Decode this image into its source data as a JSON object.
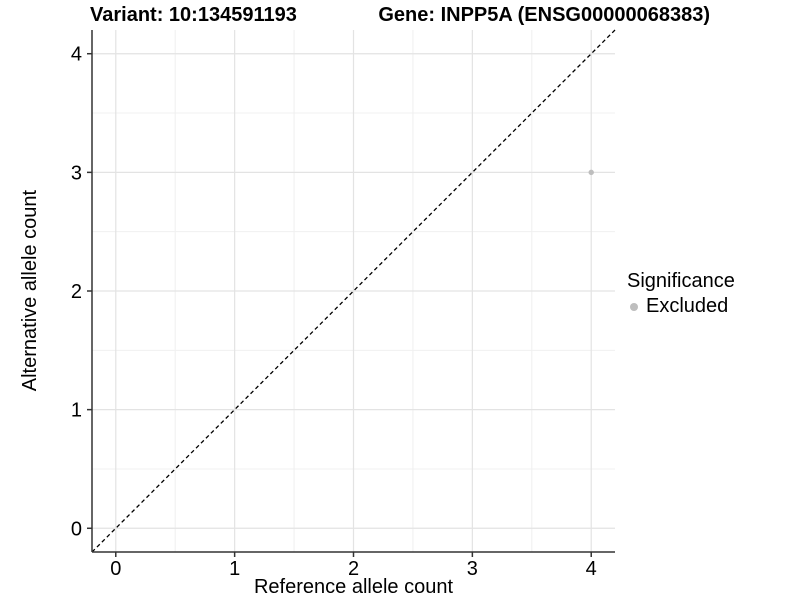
{
  "figure": {
    "title_left": "Variant: 10:134591193",
    "title_right": "Gene: INPP5A (ENSG00000068383)"
  },
  "chart_data": {
    "type": "scatter",
    "title": "Variant: 10:134591193   Gene: INPP5A (ENSG00000068383)",
    "xlabel": "Reference allele count",
    "ylabel": "Alternative allele count",
    "xlim": [
      -0.2,
      4.2
    ],
    "ylim": [
      -0.2,
      4.2
    ],
    "xticks": [
      0,
      1,
      2,
      3,
      4
    ],
    "yticks": [
      0,
      1,
      2,
      3,
      4
    ],
    "minor_gridlines": [
      0.5,
      1.5,
      2.5,
      3.5
    ],
    "grid": "on",
    "series": [
      {
        "name": "Excluded",
        "color": "#bebebe",
        "points": [
          {
            "x": 4,
            "y": 3
          }
        ]
      }
    ],
    "reference_line": {
      "slope": 1,
      "intercept": 0,
      "style": "dashed",
      "color": "#000000"
    },
    "legend": {
      "title": "Significance",
      "position": "right",
      "items": [
        {
          "label": "Excluded",
          "color": "#bebebe"
        }
      ]
    },
    "style": {
      "background": "#ffffff",
      "major_grid_color": "#e3e3e3",
      "minor_grid_color": "#f0f0f0",
      "axis_line_color": "#333333",
      "tick_label_color": "#000000",
      "point_radius": 2.7
    }
  }
}
